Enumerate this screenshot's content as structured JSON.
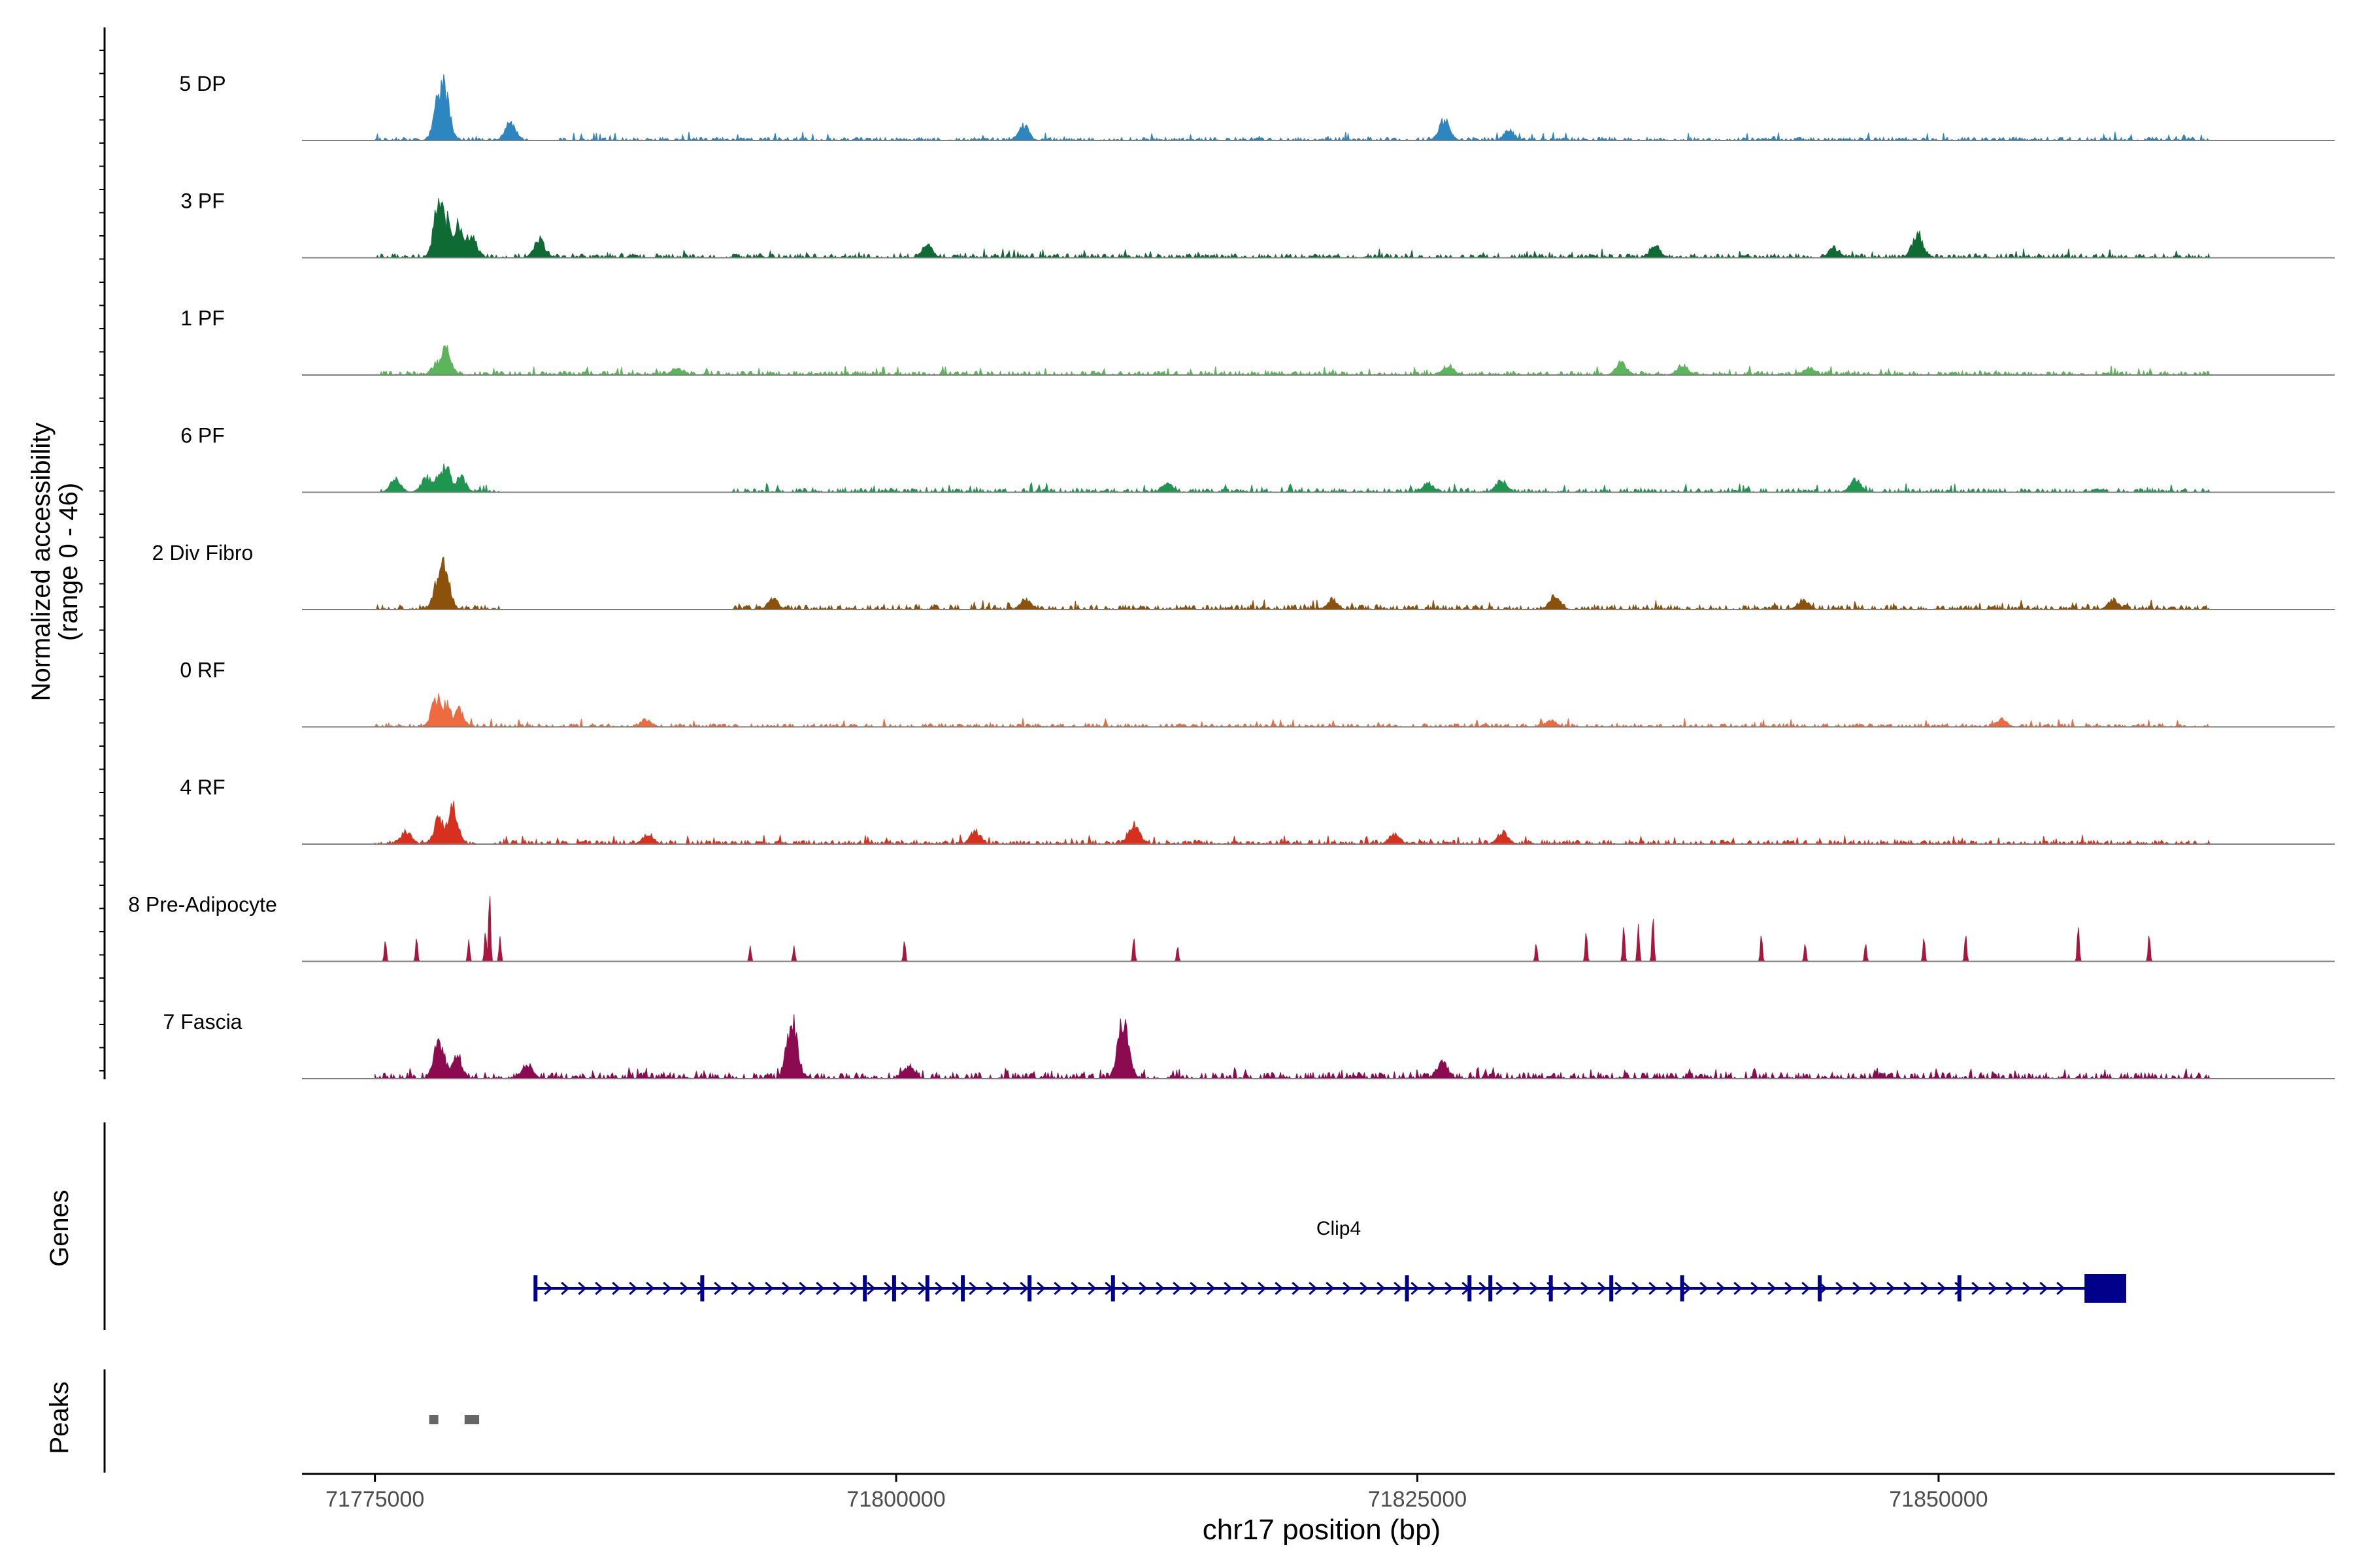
{
  "chart_data": {
    "type": "area",
    "title": "",
    "ylabel": [
      "Normalized accessibility",
      "(range 0 - 46)"
    ],
    "ylim": [
      0,
      46
    ],
    "xlabel": "chr17 position (bp)",
    "xlim": [
      71771500,
      71869000
    ],
    "x_ticks": [
      71775000,
      71800000,
      71825000,
      71850000
    ],
    "x_tick_labels": [
      "71775000",
      "71800000",
      "71825000",
      "71850000"
    ],
    "region": [
      71775000,
      71863000
    ],
    "tracks": [
      {
        "name": "5 DP",
        "color": "#2E86C1",
        "baseline": 0.4,
        "peaks": [
          [
            71778100,
            35
          ],
          [
            71778300,
            46
          ],
          [
            71781500,
            14
          ],
          [
            71806100,
            12
          ],
          [
            71826300,
            16
          ],
          [
            71829400,
            8
          ]
        ],
        "gaps": [
          [
            71782500,
            71783800
          ]
        ]
      },
      {
        "name": "3 PF",
        "color": "#0E6B33",
        "baseline": 0.5,
        "peaks": [
          [
            71778100,
            46
          ],
          [
            71778500,
            32
          ],
          [
            71779000,
            26
          ],
          [
            71779600,
            20
          ],
          [
            71782900,
            14
          ],
          [
            71801500,
            10
          ],
          [
            71836400,
            10
          ],
          [
            71845000,
            8
          ],
          [
            71849000,
            20
          ]
        ],
        "gaps": []
      },
      {
        "name": "1 PF",
        "color": "#5DB55B",
        "baseline": 0.5,
        "peaks": [
          [
            71778000,
            10
          ],
          [
            71778400,
            20
          ],
          [
            71789500,
            6
          ],
          [
            71826500,
            8
          ],
          [
            71834800,
            10
          ],
          [
            71837700,
            8
          ],
          [
            71843800,
            6
          ]
        ],
        "gaps": []
      },
      {
        "name": "6 PF",
        "color": "#1E9650",
        "baseline": 0.5,
        "peaks": [
          [
            71776000,
            10
          ],
          [
            71777500,
            12
          ],
          [
            71778100,
            14
          ],
          [
            71778400,
            20
          ],
          [
            71779100,
            12
          ],
          [
            71782000,
            8
          ],
          [
            71813000,
            8
          ],
          [
            71825500,
            8
          ],
          [
            71829000,
            10
          ],
          [
            71846000,
            10
          ]
        ],
        "gaps": [
          [
            71781200,
            71792000
          ]
        ]
      },
      {
        "name": "2 Div Fibro",
        "color": "#8C510A",
        "baseline": 0.6,
        "peaks": [
          [
            71778100,
            28
          ],
          [
            71778300,
            40
          ],
          [
            71794100,
            8
          ],
          [
            71806200,
            8
          ],
          [
            71820900,
            8
          ],
          [
            71831600,
            12
          ],
          [
            71843500,
            8
          ],
          [
            71858400,
            8
          ]
        ],
        "gaps": [
          [
            71781000,
            71792200
          ]
        ]
      },
      {
        "name": "0 RF",
        "color": "#EE6A3F",
        "baseline": 0.4,
        "peaks": [
          [
            71778000,
            24
          ],
          [
            71778400,
            18
          ],
          [
            71779000,
            14
          ],
          [
            71788000,
            6
          ],
          [
            71831400,
            5
          ],
          [
            71853000,
            6
          ]
        ],
        "gaps": []
      },
      {
        "name": "4 RF",
        "color": "#D7301F",
        "baseline": 0.5,
        "peaks": [
          [
            71776500,
            10
          ],
          [
            71778100,
            22
          ],
          [
            71778700,
            30
          ],
          [
            71788100,
            8
          ],
          [
            71803800,
            10
          ],
          [
            71811400,
            18
          ],
          [
            71823900,
            8
          ],
          [
            71829100,
            10
          ]
        ],
        "gaps": []
      },
      {
        "name": "8 Pre-Adipocyte",
        "color": "#A8163D",
        "baseline": 0,
        "peaks": [
          [
            71775500,
            14
          ],
          [
            71777000,
            16
          ],
          [
            71779500,
            14
          ],
          [
            71780300,
            20
          ],
          [
            71780500,
            46
          ],
          [
            71781000,
            16
          ],
          [
            71793000,
            10
          ],
          [
            71795100,
            10
          ],
          [
            71800400,
            14
          ],
          [
            71811400,
            16
          ],
          [
            71813500,
            10
          ],
          [
            71830700,
            12
          ],
          [
            71833100,
            20
          ],
          [
            71834900,
            24
          ],
          [
            71835600,
            24
          ],
          [
            71836300,
            30
          ],
          [
            71841500,
            18
          ],
          [
            71843600,
            12
          ],
          [
            71846500,
            12
          ],
          [
            71849300,
            16
          ],
          [
            71851300,
            18
          ],
          [
            71856700,
            24
          ],
          [
            71860100,
            18
          ]
        ],
        "gaps": []
      },
      {
        "name": "7 Fascia",
        "color": "#8B0A50",
        "baseline": 0.8,
        "peaks": [
          [
            71778100,
            30
          ],
          [
            71778900,
            20
          ],
          [
            71782300,
            12
          ],
          [
            71795000,
            46
          ],
          [
            71800600,
            10
          ],
          [
            71810900,
            46
          ],
          [
            71826200,
            14
          ]
        ],
        "gaps": []
      }
    ],
    "genes": {
      "label": "Genes",
      "name": "Clip4",
      "start": 71782700,
      "end": 71859000,
      "strand": "+",
      "color": "#00008B",
      "exons": [
        71782700,
        71790700,
        71798500,
        71799900,
        71801500,
        71803200,
        71806400,
        71810400,
        71824500,
        71827500,
        71828500,
        71831400,
        71834300,
        71837700,
        71844300,
        71851000
      ],
      "utr3": [
        71857000,
        71859000
      ]
    },
    "peaks_track": {
      "label": "Peaks",
      "color": "#666666",
      "regions": [
        [
          71777600,
          71778000
        ],
        [
          71779300,
          71780000
        ]
      ]
    }
  }
}
